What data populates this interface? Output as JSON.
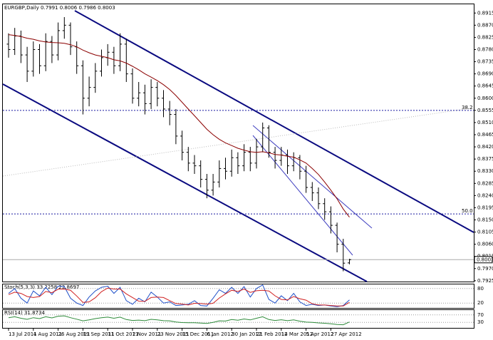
{
  "chart_data": [
    {
      "type": "ohlc",
      "title": "EURGBP,Daily  0.7991 0.8006 0.7986 0.8003",
      "bar_color": "#000000",
      "categories": [
        "13 Jul 2011",
        null,
        null,
        null,
        "4 Aug 2011",
        null,
        null,
        null,
        "26 Aug 2011",
        null,
        null,
        null,
        "19 Sep 2011",
        null,
        null,
        null,
        "11 Oct 2011",
        null,
        null,
        null,
        "2 Nov 2011",
        null,
        null,
        null,
        "23 Nov 2011",
        null,
        null,
        null,
        "15 Dec 2011",
        null,
        null,
        null,
        "6 Jan 2012",
        null,
        null,
        null,
        "30 Jan 2012",
        null,
        null,
        null,
        "21 Feb 2012",
        null,
        null,
        null,
        "14 Mar 2012",
        null,
        null,
        null,
        "5 Apr 2012",
        null,
        null,
        null,
        "27 Apr 2012",
        null,
        null,
        null
      ],
      "open": [
        0.88,
        0.878,
        0.883,
        0.876,
        0.87,
        0.878,
        0.872,
        0.881,
        0.876,
        0.885,
        0.887,
        0.879,
        0.872,
        0.86,
        0.864,
        0.87,
        0.875,
        0.877,
        0.872,
        0.88,
        0.869,
        0.86,
        0.862,
        0.858,
        0.864,
        0.86,
        0.856,
        0.854,
        0.846,
        0.84,
        0.836,
        0.835,
        0.83,
        0.826,
        0.829,
        0.834,
        0.833,
        0.838,
        0.835,
        0.84,
        0.836,
        0.842,
        0.849,
        0.84,
        0.837,
        0.839,
        0.835,
        0.838,
        0.833,
        0.827,
        0.825,
        0.821,
        0.818,
        0.813,
        0.806,
        0.7991
      ],
      "high": [
        0.884,
        0.886,
        0.885,
        0.879,
        0.881,
        0.88,
        0.884,
        0.883,
        0.888,
        0.89,
        0.888,
        0.881,
        0.874,
        0.868,
        0.873,
        0.878,
        0.88,
        0.879,
        0.884,
        0.882,
        0.871,
        0.866,
        0.865,
        0.867,
        0.866,
        0.863,
        0.859,
        0.856,
        0.848,
        0.842,
        0.839,
        0.837,
        0.832,
        0.832,
        0.837,
        0.838,
        0.841,
        0.84,
        0.843,
        0.842,
        0.845,
        0.851,
        0.85,
        0.842,
        0.842,
        0.841,
        0.84,
        0.839,
        0.835,
        0.829,
        0.827,
        0.823,
        0.82,
        0.814,
        0.808,
        0.8006
      ],
      "low": [
        0.875,
        0.876,
        0.873,
        0.866,
        0.868,
        0.869,
        0.87,
        0.873,
        0.874,
        0.882,
        0.876,
        0.869,
        0.854,
        0.857,
        0.862,
        0.868,
        0.872,
        0.869,
        0.87,
        0.866,
        0.858,
        0.857,
        0.854,
        0.856,
        0.857,
        0.853,
        0.85,
        0.843,
        0.837,
        0.833,
        0.832,
        0.827,
        0.823,
        0.824,
        0.827,
        0.83,
        0.831,
        0.832,
        0.833,
        0.833,
        0.834,
        0.84,
        0.838,
        0.834,
        0.835,
        0.832,
        0.833,
        0.83,
        0.825,
        0.822,
        0.819,
        0.815,
        0.81,
        0.803,
        0.796,
        0.7986
      ],
      "close": [
        0.878,
        0.883,
        0.876,
        0.87,
        0.878,
        0.872,
        0.881,
        0.876,
        0.885,
        0.887,
        0.879,
        0.872,
        0.86,
        0.864,
        0.87,
        0.875,
        0.877,
        0.872,
        0.88,
        0.869,
        0.86,
        0.862,
        0.858,
        0.864,
        0.86,
        0.856,
        0.854,
        0.846,
        0.84,
        0.836,
        0.835,
        0.83,
        0.826,
        0.829,
        0.834,
        0.833,
        0.838,
        0.835,
        0.84,
        0.836,
        0.842,
        0.849,
        0.84,
        0.837,
        0.839,
        0.835,
        0.838,
        0.833,
        0.827,
        0.825,
        0.821,
        0.818,
        0.813,
        0.806,
        0.799,
        0.8003
      ],
      "ma": {
        "color": "#8b0000",
        "values": [
          0.8835,
          0.8832,
          0.8828,
          0.8822,
          0.8818,
          0.8812,
          0.8808,
          0.8806,
          0.8805,
          0.8803,
          0.8798,
          0.879,
          0.8778,
          0.8768,
          0.876,
          0.8755,
          0.875,
          0.8742,
          0.8738,
          0.873,
          0.8718,
          0.8705,
          0.869,
          0.8678,
          0.8665,
          0.865,
          0.8632,
          0.861,
          0.8585,
          0.856,
          0.8535,
          0.851,
          0.8485,
          0.8465,
          0.8448,
          0.8435,
          0.8425,
          0.8415,
          0.8408,
          0.8402,
          0.84,
          0.8402,
          0.8398,
          0.8392,
          0.839,
          0.8385,
          0.8382,
          0.8372,
          0.836,
          0.834,
          0.8318,
          0.829,
          0.826,
          0.8228,
          0.819,
          0.816
        ]
      },
      "ylim": [
        0.7922,
        0.895
      ],
      "yticks": [
        0.8915,
        {
          "value": 0.887,
          "label": "0.8870"
        },
        0.8825,
        {
          "value": 0.878,
          "label": "0.8780"
        },
        0.8735,
        {
          "value": 0.869,
          "label": "0.8690"
        },
        0.8645,
        {
          "value": 0.86,
          "label": "0.8600"
        },
        0.8555,
        {
          "value": 0.851,
          "label": "0.8510"
        },
        0.8465,
        {
          "value": 0.842,
          "label": "0.8420"
        },
        0.8375,
        {
          "value": 0.833,
          "label": "0.8330"
        },
        0.8285,
        {
          "value": 0.824,
          "label": "0.8240"
        },
        0.8195,
        {
          "value": 0.815,
          "label": "0.8150"
        },
        0.8105,
        {
          "value": 0.806,
          "label": "0.8060"
        },
        0.8015,
        {
          "value": 0.797,
          "label": "0.7970"
        },
        0.7925
      ],
      "last_price": 0.8003,
      "annotations": [
        {
          "label": "38.2",
          "value": 0.8555
        },
        {
          "label": "50.0",
          "value": 0.8172
        }
      ],
      "annotation_color": "#1a1aa0"
    },
    {
      "type": "line",
      "title": "Stoch(5,3,3) 33.2258 22.8697",
      "ylim": [
        0,
        100
      ],
      "yticks": [
        80,
        20
      ],
      "series": [
        {
          "color": "#2050c8",
          "values": [
            60,
            80,
            40,
            20,
            70,
            50,
            85,
            55,
            90,
            88,
            40,
            20,
            10,
            45,
            70,
            85,
            90,
            60,
            85,
            30,
            15,
            40,
            25,
            65,
            45,
            20,
            25,
            10,
            12,
            15,
            30,
            10,
            8,
            40,
            75,
            60,
            85,
            60,
            88,
            45,
            80,
            95,
            35,
            20,
            50,
            30,
            60,
            25,
            10,
            15,
            10,
            12,
            8,
            5,
            10,
            33.2258
          ]
        },
        {
          "color": "#d02020",
          "values": [
            55,
            65,
            60,
            47,
            43,
            47,
            68,
            63,
            77,
            78,
            73,
            49,
            23,
            25,
            42,
            67,
            82,
            78,
            78,
            58,
            43,
            28,
            27,
            43,
            45,
            43,
            30,
            18,
            16,
            12,
            19,
            18,
            16,
            19,
            41,
            58,
            73,
            68,
            78,
            64,
            71,
            73,
            70,
            50,
            35,
            33,
            47,
            38,
            32,
            17,
            12,
            12,
            10,
            8,
            8,
            22.8697
          ]
        }
      ]
    },
    {
      "type": "line",
      "title": "RSI(14) 31.8734",
      "ylim": [
        0,
        100
      ],
      "yticks": [
        70,
        30
      ],
      "series": [
        {
          "color": "#2e8b3a",
          "values": [
            55,
            60,
            52,
            46,
            55,
            50,
            60,
            54,
            63,
            65,
            55,
            47,
            38,
            43,
            50,
            55,
            58,
            52,
            58,
            45,
            40,
            42,
            39,
            46,
            43,
            39,
            38,
            32,
            29,
            28,
            28,
            26,
            24,
            30,
            38,
            37,
            45,
            41,
            48,
            43,
            52,
            60,
            45,
            40,
            44,
            39,
            43,
            36,
            31,
            30,
            27,
            25,
            22,
            18,
            17,
            31.8734
          ]
        }
      ]
    }
  ]
}
